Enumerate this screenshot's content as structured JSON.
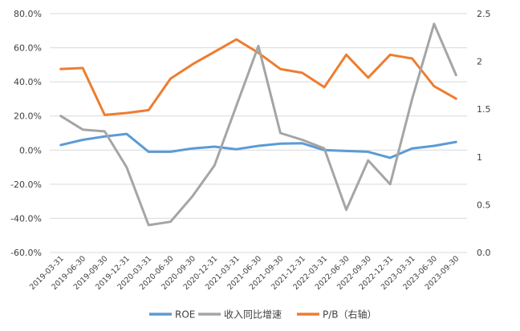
{
  "chart_data": {
    "type": "line",
    "categories": [
      "2019-03-31",
      "2019-06-30",
      "2019-09-30",
      "2019-12-31",
      "2020-03-31",
      "2020-06-30",
      "2020-09-30",
      "2020-12-31",
      "2021-03-31",
      "2021-06-30",
      "2021-09-30",
      "2021-12-31",
      "2022-03-31",
      "2022-06-30",
      "2022-09-30",
      "2022-12-31",
      "2023-03-31",
      "2023-06-30",
      "2023-09-30"
    ],
    "y_left": {
      "ticks": [
        "80.0%",
        "60.0%",
        "40.0%",
        "20.0%",
        "0.0%",
        "-20.0%",
        "-40.0%",
        "-60.0%"
      ],
      "ylim": [
        -60,
        80
      ]
    },
    "y_right": {
      "ticks": [
        "2.5",
        "2",
        "1.5",
        "1",
        "0.5",
        "0.0"
      ],
      "ylim": [
        0,
        2.5
      ]
    },
    "grid": true,
    "legend_position": "bottom",
    "series": [
      {
        "name": "ROE",
        "axis": "left",
        "color": "#5b9bd5",
        "values": [
          3.0,
          6.0,
          8.0,
          9.5,
          -1.0,
          -1.0,
          1.0,
          2.0,
          0.5,
          2.5,
          3.8,
          4.0,
          0.0,
          -0.5,
          -1.0,
          -4.5,
          1.0,
          2.5,
          4.8
        ]
      },
      {
        "name": "收入同比增速",
        "axis": "left",
        "color": "#a5a5a5",
        "values": [
          20.0,
          12.0,
          11.0,
          -10.0,
          -44.0,
          -42.0,
          -27.0,
          -9.0,
          26.0,
          61.0,
          10.0,
          6.0,
          1.0,
          -35.0,
          -6.0,
          -20.0,
          30.0,
          74.0,
          44.0
        ]
      },
      {
        "name": "P/B（右轴）",
        "axis": "right",
        "color": "#ed7d31",
        "values": [
          1.92,
          1.93,
          1.44,
          1.46,
          1.49,
          1.82,
          1.97,
          2.1,
          2.23,
          2.09,
          1.92,
          1.88,
          1.73,
          2.07,
          1.83,
          2.07,
          2.03,
          1.74,
          1.61
        ]
      }
    ]
  }
}
